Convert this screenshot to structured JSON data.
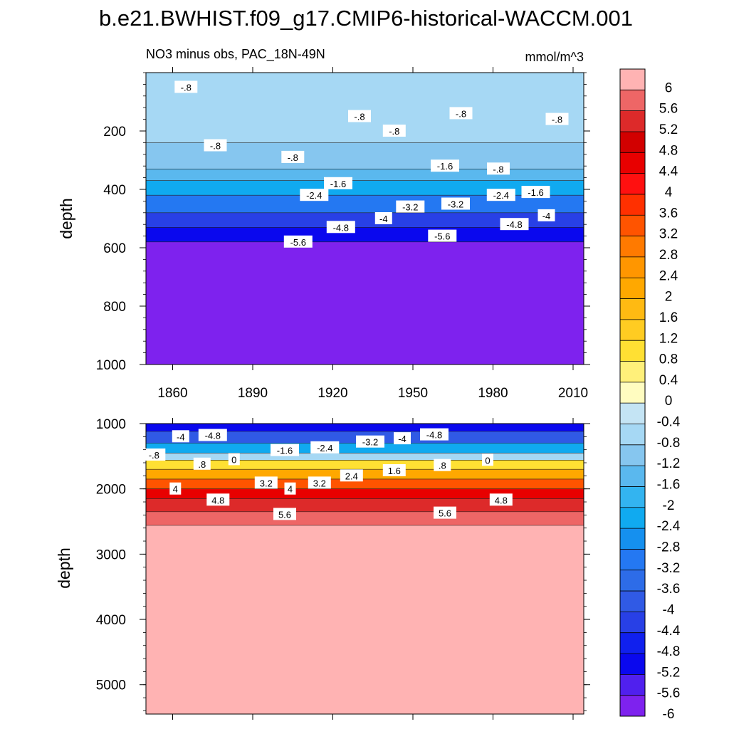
{
  "chart_data": {
    "title": "b.e21.BWHIST.f09_g17.CMIP6-historical-WACCM.001",
    "subtitle_left": "NO3 minus obs, PAC_18N-49N",
    "subtitle_right": "mmol/m^3",
    "type": "heatmap",
    "x_ticks": [
      1860,
      1890,
      1920,
      1950,
      1980,
      2010
    ],
    "x_range": [
      1850,
      2014
    ],
    "colorbar": {
      "levels": [
        "6",
        "5.6",
        "5.2",
        "4.8",
        "4.4",
        "4",
        "3.6",
        "3.2",
        "2.8",
        "2.4",
        "2",
        "1.6",
        "1.2",
        "0.8",
        "0.4",
        "0",
        "-0.4",
        "-0.8",
        "-1.2",
        "-1.6",
        "-2",
        "-2.4",
        "-2.8",
        "-3.2",
        "-3.6",
        "-4",
        "-4.4",
        "-4.8",
        "-5.2",
        "-5.6",
        "-6"
      ],
      "colors": [
        "#ffb3b3",
        "#ee6666",
        "#dd2a2a",
        "#d20000",
        "#e80000",
        "#ff1010",
        "#ff3000",
        "#ff5400",
        "#ff7a00",
        "#ff9600",
        "#ffa800",
        "#ffba12",
        "#ffcc22",
        "#ffe033",
        "#fff07a",
        "#fffcc0",
        "#c4e4f4",
        "#a6d8f4",
        "#86c6ef",
        "#5ab8ee",
        "#33b4f0",
        "#10aaf0",
        "#1590ef",
        "#2478f2",
        "#2d6ce8",
        "#305ae5",
        "#2840e6",
        "#1020ee",
        "#0a08ee",
        "#5020ee",
        "#7e22ee"
      ]
    },
    "panels": [
      {
        "ylabel": "depth",
        "y_ticks": [
          200,
          400,
          600,
          800,
          1000
        ],
        "y_range": [
          0,
          1000
        ],
        "layers": [
          {
            "value": -0.8,
            "depth_top": 0,
            "depth_bottom": 240
          },
          {
            "value": -1.2,
            "depth_top": 240,
            "depth_bottom": 330
          },
          {
            "value": -1.6,
            "depth_top": 330,
            "depth_bottom": 370
          },
          {
            "value": -2.4,
            "depth_top": 370,
            "depth_bottom": 420
          },
          {
            "value": -3.2,
            "depth_top": 420,
            "depth_bottom": 480
          },
          {
            "value": -4.4,
            "depth_top": 480,
            "depth_bottom": 530
          },
          {
            "value": -5.2,
            "depth_top": 530,
            "depth_bottom": 580
          },
          {
            "value": -6,
            "depth_top": 580,
            "depth_bottom": 1000
          }
        ],
        "contour_labels": [
          {
            "text": "-.8",
            "year": 1865,
            "depth": 50
          },
          {
            "text": "-.8",
            "year": 1876,
            "depth": 250
          },
          {
            "text": "-.8",
            "year": 1905,
            "depth": 290
          },
          {
            "text": "-.8",
            "year": 1930,
            "depth": 150
          },
          {
            "text": "-.8",
            "year": 1943,
            "depth": 200
          },
          {
            "text": "-.8",
            "year": 1968,
            "depth": 140
          },
          {
            "text": "-.8",
            "year": 1982,
            "depth": 330
          },
          {
            "text": "-.8",
            "year": 2004,
            "depth": 160
          },
          {
            "text": "-1.6",
            "year": 1922,
            "depth": 380
          },
          {
            "text": "-1.6",
            "year": 1962,
            "depth": 320
          },
          {
            "text": "-1.6",
            "year": 1996,
            "depth": 410
          },
          {
            "text": "-2.4",
            "year": 1913,
            "depth": 420
          },
          {
            "text": "-2.4",
            "year": 1983,
            "depth": 420
          },
          {
            "text": "-3.2",
            "year": 1949,
            "depth": 460
          },
          {
            "text": "-3.2",
            "year": 1966,
            "depth": 450
          },
          {
            "text": "-4",
            "year": 1939,
            "depth": 500
          },
          {
            "text": "-4",
            "year": 2000,
            "depth": 490
          },
          {
            "text": "-4.8",
            "year": 1923,
            "depth": 530
          },
          {
            "text": "-4.8",
            "year": 1988,
            "depth": 520
          },
          {
            "text": "-5.6",
            "year": 1907,
            "depth": 580
          },
          {
            "text": "-5.6",
            "year": 1961,
            "depth": 560
          }
        ]
      },
      {
        "ylabel": "depth",
        "y_ticks": [
          1000,
          2000,
          3000,
          4000,
          5000
        ],
        "y_range": [
          1000,
          5450
        ],
        "layers": [
          {
            "value": -5.2,
            "depth_top": 1000,
            "depth_bottom": 1120
          },
          {
            "value": -4,
            "depth_top": 1120,
            "depth_bottom": 1300
          },
          {
            "value": -2.4,
            "depth_top": 1300,
            "depth_bottom": 1450
          },
          {
            "value": -0.8,
            "depth_top": 1450,
            "depth_bottom": 1560
          },
          {
            "value": 0.8,
            "depth_top": 1560,
            "depth_bottom": 1700
          },
          {
            "value": 2,
            "depth_top": 1700,
            "depth_bottom": 1850
          },
          {
            "value": 3.2,
            "depth_top": 1850,
            "depth_bottom": 2000
          },
          {
            "value": 4.4,
            "depth_top": 2000,
            "depth_bottom": 2150
          },
          {
            "value": 5.2,
            "depth_top": 2150,
            "depth_bottom": 2350
          },
          {
            "value": 5.6,
            "depth_top": 2350,
            "depth_bottom": 2560
          },
          {
            "value": 6,
            "depth_top": 2560,
            "depth_bottom": 5450
          }
        ],
        "contour_labels": [
          {
            "text": "-4",
            "year": 1863,
            "depth": 1200
          },
          {
            "text": "-4.8",
            "year": 1875,
            "depth": 1180
          },
          {
            "text": "-.8",
            "year": 1853,
            "depth": 1480
          },
          {
            "text": "0",
            "year": 1883,
            "depth": 1550
          },
          {
            "text": ".8",
            "year": 1871,
            "depth": 1620
          },
          {
            "text": "-1.6",
            "year": 1902,
            "depth": 1410
          },
          {
            "text": "-2.4",
            "year": 1917,
            "depth": 1370
          },
          {
            "text": "-3.2",
            "year": 1934,
            "depth": 1280
          },
          {
            "text": "-4",
            "year": 1946,
            "depth": 1230
          },
          {
            "text": "-4.8",
            "year": 1958,
            "depth": 1170
          },
          {
            "text": "0",
            "year": 1978,
            "depth": 1560
          },
          {
            "text": ".8",
            "year": 1961,
            "depth": 1640
          },
          {
            "text": "1.6",
            "year": 1943,
            "depth": 1720
          },
          {
            "text": "2.4",
            "year": 1927,
            "depth": 1800
          },
          {
            "text": "3.2",
            "year": 1895,
            "depth": 1910
          },
          {
            "text": "3.2",
            "year": 1915,
            "depth": 1910
          },
          {
            "text": "4",
            "year": 1861,
            "depth": 2000
          },
          {
            "text": "4",
            "year": 1904,
            "depth": 2000
          },
          {
            "text": "4.8",
            "year": 1877,
            "depth": 2170
          },
          {
            "text": "4.8",
            "year": 1983,
            "depth": 2170
          },
          {
            "text": "5.6",
            "year": 1902,
            "depth": 2390
          },
          {
            "text": "5.6",
            "year": 1962,
            "depth": 2370
          }
        ]
      }
    ]
  }
}
